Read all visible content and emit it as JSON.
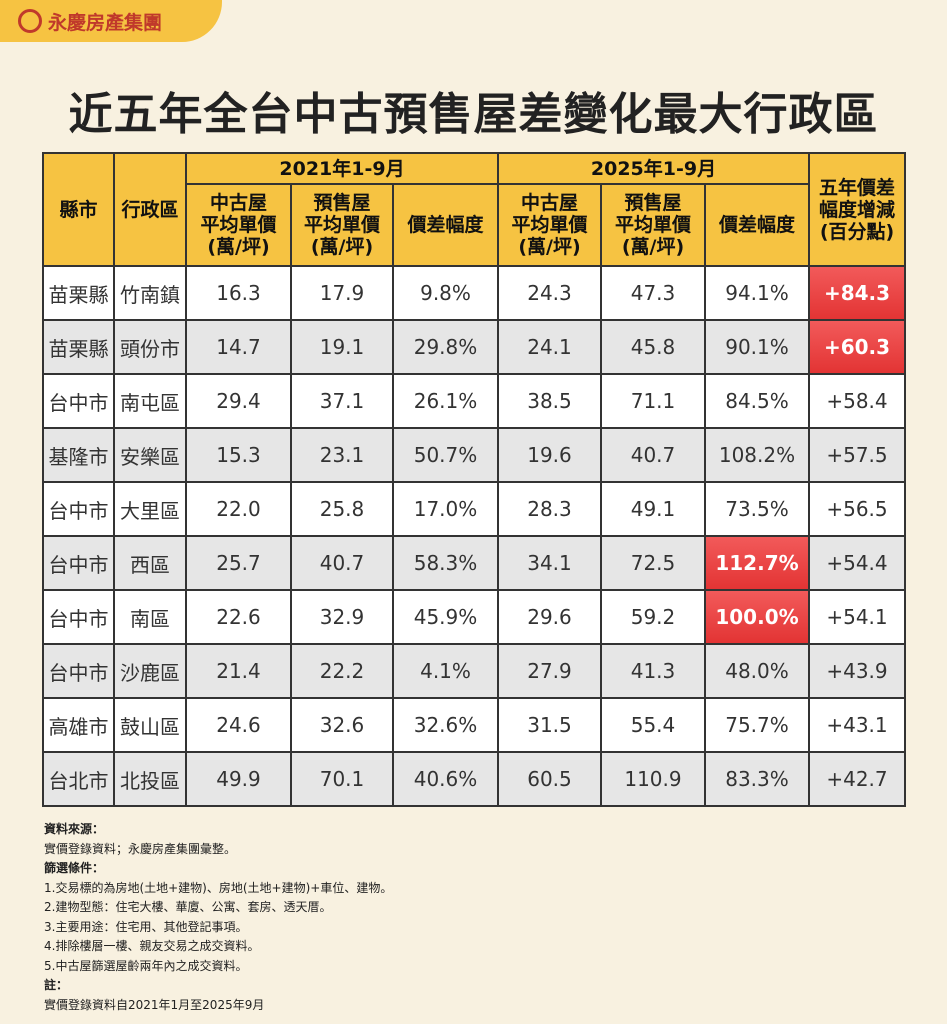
{
  "header": {
    "brand": "永慶房產集團",
    "title": [
      "近五年全台中古預售屋",
      "差變化最大行政區"
    ]
  },
  "table": {
    "groups": [
      "2021年1-9月",
      "2025年1-9月"
    ],
    "columns": [
      "縣市",
      "行政區",
      "中古屋\n平均單價\n(萬/坪)",
      "預售屋\n平均單價\n(萬/坪)",
      "價差幅度",
      "中古屋\n平均單價\n(萬/坪)",
      "預售屋\n平均單價\n(萬/坪)",
      "價差幅度",
      "五年價差\n幅度增減\n(百分點)"
    ],
    "rows": [
      [
        "苗栗縣",
        "竹南鎮",
        "16.3",
        "17.9",
        "9.8%",
        "24.3",
        "47.3",
        "94.1%",
        "+84.3"
      ],
      [
        "苗栗縣",
        "頭份市",
        "14.7",
        "19.1",
        "29.8%",
        "24.1",
        "45.8",
        "90.1%",
        "+60.3"
      ],
      [
        "台中市",
        "南屯區",
        "29.4",
        "37.1",
        "26.1%",
        "38.5",
        "71.1",
        "84.5%",
        "+58.4"
      ],
      [
        "基隆市",
        "安樂區",
        "15.3",
        "23.1",
        "50.7%",
        "19.6",
        "40.7",
        "108.2%",
        "+57.5"
      ],
      [
        "台中市",
        "大里區",
        "22.0",
        "25.8",
        "17.0%",
        "28.3",
        "49.1",
        "73.5%",
        "+56.5"
      ],
      [
        "台中市",
        "西區",
        "25.7",
        "40.7",
        "58.3%",
        "34.1",
        "72.5",
        "112.7%",
        "+54.4"
      ],
      [
        "台中市",
        "南區",
        "22.6",
        "32.9",
        "45.9%",
        "29.6",
        "59.2",
        "100.0%",
        "+54.1"
      ],
      [
        "台中市",
        "沙鹿區",
        "21.4",
        "22.2",
        "4.1%",
        "27.9",
        "41.3",
        "48.0%",
        "+43.9"
      ],
      [
        "高雄市",
        "鼓山區",
        "24.6",
        "32.6",
        "32.6%",
        "31.5",
        "55.4",
        "75.7%",
        "+43.1"
      ],
      [
        "台北市",
        "北投區",
        "49.9",
        "70.1",
        "40.6%",
        "60.5",
        "110.9",
        "83.3%",
        "+42.7"
      ]
    ]
  },
  "notes": [
    "資料來源：",
    "實價登錄資料；永慶房產集團彙整。",
    "篩選條件：",
    "1.交易標的為房地(土地+建物)、房地(土地+建物)+車位、建物。",
    "2.建物型態：住宅大樓、華廈、公寓、套房、透天厝。",
    "3.主要用途：住宅用、其他登記事項。",
    "4.排除樓層一樓、親友交易之成交資料。",
    "5.中古屋篩選屋齡兩年內之成交資料。",
    "註：",
    "實價登錄資料自2021年1月至2025年9月"
  ]
}
